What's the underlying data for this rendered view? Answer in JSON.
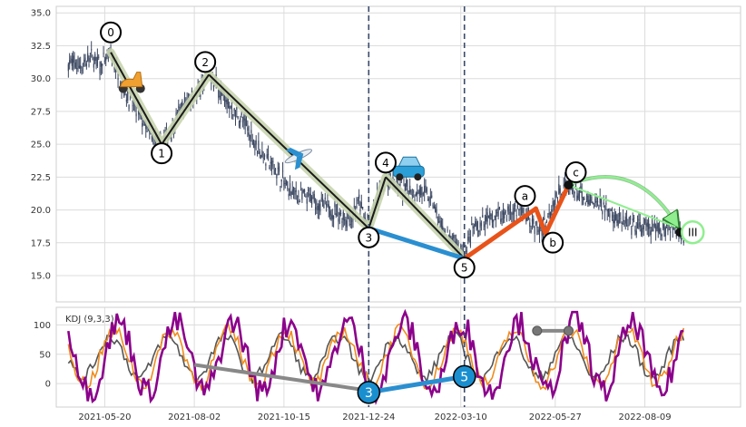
{
  "chart_data": [
    {
      "type": "candlestick",
      "x_ticks": [
        "2021-05-20",
        "2021-08-02",
        "2021-10-15",
        "2021-12-24",
        "2022-03-10",
        "2022-05-27",
        "2022-08-09"
      ],
      "x_tick_days": [
        0,
        74,
        148,
        218,
        294,
        372,
        446
      ],
      "x_range_days": [
        -40,
        525
      ],
      "ylim": [
        13.0,
        35.5
      ],
      "y_ticks": [
        "15.0",
        "17.5",
        "20.0",
        "22.5",
        "25.0",
        "27.5",
        "30.0",
        "32.5",
        "35.0"
      ],
      "grid": true,
      "price_path": [
        [
          -30,
          31.2
        ],
        [
          -20,
          31.0
        ],
        [
          -10,
          31.6
        ],
        [
          -4,
          31.0
        ],
        [
          0,
          31.3
        ],
        [
          5,
          31.9
        ],
        [
          12,
          30.0
        ],
        [
          20,
          28.5
        ],
        [
          30,
          27.0
        ],
        [
          38,
          25.5
        ],
        [
          47,
          25.0
        ],
        [
          55,
          26.0
        ],
        [
          62,
          27.5
        ],
        [
          70,
          28.5
        ],
        [
          78,
          29.0
        ],
        [
          86,
          30.3
        ],
        [
          92,
          29.6
        ],
        [
          102,
          28.0
        ],
        [
          112,
          27.0
        ],
        [
          122,
          25.5
        ],
        [
          132,
          24.0
        ],
        [
          142,
          23.0
        ],
        [
          152,
          21.5
        ],
        [
          162,
          21.0
        ],
        [
          172,
          20.8
        ],
        [
          182,
          20.2
        ],
        [
          192,
          19.8
        ],
        [
          202,
          19.2
        ],
        [
          210,
          20.5
        ],
        [
          218,
          18.6
        ],
        [
          224,
          20.5
        ],
        [
          232,
          22.5
        ],
        [
          242,
          21.8
        ],
        [
          252,
          21.5
        ],
        [
          262,
          21.4
        ],
        [
          270,
          20.8
        ],
        [
          276,
          19.0
        ],
        [
          284,
          17.8
        ],
        [
          292,
          17.2
        ],
        [
          297,
          16.5
        ],
        [
          304,
          18.5
        ],
        [
          312,
          19.0
        ],
        [
          322,
          19.5
        ],
        [
          332,
          19.8
        ],
        [
          342,
          20.0
        ],
        [
          352,
          19.0
        ],
        [
          360,
          18.4
        ],
        [
          370,
          20.5
        ],
        [
          380,
          21.9
        ],
        [
          388,
          21.5
        ],
        [
          398,
          20.5
        ],
        [
          410,
          20.5
        ],
        [
          420,
          19.6
        ],
        [
          432,
          18.8
        ],
        [
          444,
          18.6
        ],
        [
          455,
          18.5
        ],
        [
          468,
          18.8
        ],
        [
          478,
          18.2
        ]
      ],
      "wave_points": [
        {
          "label": "0",
          "day": 5,
          "price": 32.0
        },
        {
          "label": "1",
          "day": 47,
          "price": 25.0
        },
        {
          "label": "2",
          "day": 86,
          "price": 30.3
        },
        {
          "label": "3",
          "day": 218,
          "price": 18.6
        },
        {
          "label": "4",
          "day": 232,
          "price": 22.5
        },
        {
          "label": "5",
          "day": 297,
          "price": 16.3
        },
        {
          "label": "a",
          "day": 356,
          "price": 20.1
        },
        {
          "label": "b",
          "day": 364,
          "price": 18.2
        },
        {
          "label": "c",
          "day": 383,
          "price": 21.9
        },
        {
          "label": "III",
          "day": 475,
          "price": 18.3
        }
      ],
      "link_3_5": [
        [
          218,
          18.6
        ],
        [
          297,
          16.3
        ]
      ],
      "projection_arrow": {
        "from": [
          383,
          21.9
        ],
        "to": [
          475,
          18.3
        ]
      },
      "dashed_vlines_days": [
        218,
        297
      ]
    },
    {
      "type": "line",
      "title": "KDJ (9,3,3)",
      "ylim": [
        -40,
        130
      ],
      "y_ticks": [
        "0",
        "50",
        "100"
      ],
      "series": [
        {
          "key": "J",
          "color": "#8b008b"
        },
        {
          "key": "D",
          "color": "#555555"
        },
        {
          "key": "K",
          "color": "#f08c1e"
        }
      ],
      "divergence_gray_left": [
        [
          74,
          32
        ],
        [
          218,
          -12
        ]
      ],
      "divergence_gray_right": [
        [
          357,
          90
        ],
        [
          383,
          90
        ]
      ],
      "divergence_blue": {
        "from": {
          "label": "3",
          "day": 218,
          "value": -15
        },
        "to": {
          "label": "5",
          "day": 297,
          "value": 12
        }
      }
    }
  ],
  "colors": {
    "impulse": "#1a1a1a",
    "impulse_glow": "#c8d5b0",
    "correction": "#e8531a",
    "link": "#2a8fd0",
    "candles": "#3a4660",
    "grid": "#dcdcdc",
    "arrow": "#90ee90",
    "kdj_circle": "#1a8fd0"
  },
  "icons": [
    "scooter-icon",
    "airplane-icon",
    "car-icon"
  ]
}
